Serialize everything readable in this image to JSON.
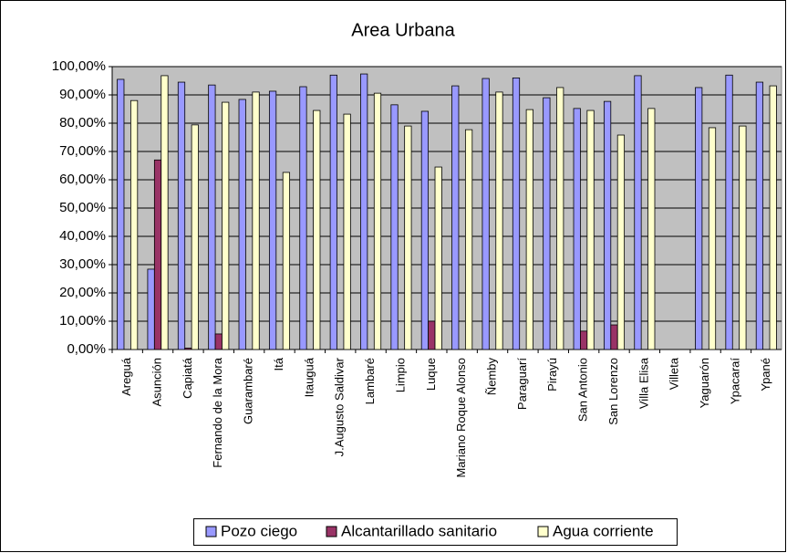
{
  "chart_data": {
    "type": "bar",
    "title": "Area Urbana",
    "categories": [
      "Areguá",
      "Asunción",
      "Capiatá",
      "Fernando de la Mora",
      "Guarambaré",
      "Itá",
      "Itauguá",
      "J.Augusto Saldivar",
      "Lambaré",
      "Limpio",
      "Luque",
      "Mariano Roque Alonso",
      "Ñemby",
      "Paraguarí",
      "Pirayú",
      "San Antonio",
      "San Lorenzo",
      "Villa Elisa",
      "Villeta",
      "Yaguarón",
      "Ypacaraí",
      "Ypané"
    ],
    "series": [
      {
        "name": "Pozo ciego",
        "color": "#9999ff",
        "values": [
          95.5,
          28.4,
          94.5,
          93.5,
          88.4,
          91.3,
          92.9,
          97,
          97.4,
          86.5,
          84.2,
          93.2,
          95.8,
          96,
          89,
          85.2,
          87.7,
          96.8,
          null,
          92.6,
          97,
          94.5
        ]
      },
      {
        "name": "Alcantarillado sanitario",
        "color": "#993366",
        "values": [
          0,
          67,
          0.5,
          5.5,
          0,
          0,
          0,
          0,
          0,
          0,
          10,
          0,
          0,
          0,
          0,
          6.5,
          8.7,
          0,
          null,
          0,
          0,
          0
        ]
      },
      {
        "name": "Agua corriente",
        "color": "#ffffcc",
        "values": [
          88,
          96.8,
          79.4,
          87.4,
          91,
          62.6,
          84.5,
          83.2,
          90.6,
          79,
          64.5,
          77.7,
          91,
          84.8,
          92.6,
          84.5,
          75.8,
          85.2,
          null,
          78.4,
          79,
          93.2
        ]
      }
    ],
    "ylim": [
      0,
      100
    ],
    "yticks": [
      {
        "value": 0,
        "label": "0,00%"
      },
      {
        "value": 10,
        "label": "10,00%"
      },
      {
        "value": 20,
        "label": "20,00%"
      },
      {
        "value": 30,
        "label": "30,00%"
      },
      {
        "value": 40,
        "label": "40,00%"
      },
      {
        "value": 50,
        "label": "50,00%"
      },
      {
        "value": 60,
        "label": "60,00%"
      },
      {
        "value": 70,
        "label": "70,00%"
      },
      {
        "value": 80,
        "label": "80,00%"
      },
      {
        "value": 90,
        "label": "90,00%"
      },
      {
        "value": 100,
        "label": "100,00%"
      }
    ],
    "grid": true,
    "legend": "bottom",
    "plot_background": "#c0c0c0"
  }
}
